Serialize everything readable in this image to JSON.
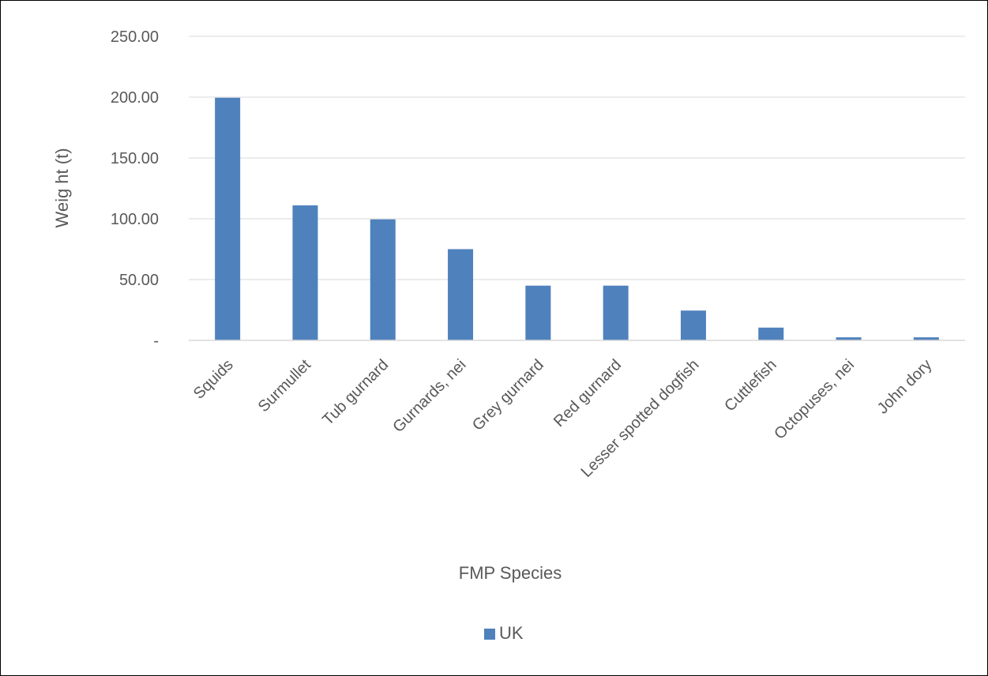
{
  "chart_data": {
    "type": "bar",
    "title": "",
    "xlabel": "FMP Species",
    "ylabel": "Weig ht (t)",
    "categories": [
      "Squids",
      "Surmullet",
      "Tub gurnard",
      "Gurnards, nei",
      "Grey gurnard",
      "Red gurnard",
      "Lesser spotted dogfish",
      "Cuttlefish",
      "Octopuses, nei",
      "John dory"
    ],
    "series": [
      {
        "name": "UK",
        "color": "#4f81bd",
        "values": [
          199.5,
          111,
          99.5,
          75,
          45,
          45,
          24.5,
          10.5,
          2.5,
          2.5
        ]
      }
    ],
    "ylim": [
      0,
      250
    ],
    "yticks": [
      0,
      50,
      100,
      150,
      200,
      250
    ],
    "ytick_labels": [
      "-",
      "50.00",
      "100.00",
      "150.00",
      "200.00",
      "250.00"
    ],
    "grid": true,
    "legend_position": "bottom"
  }
}
